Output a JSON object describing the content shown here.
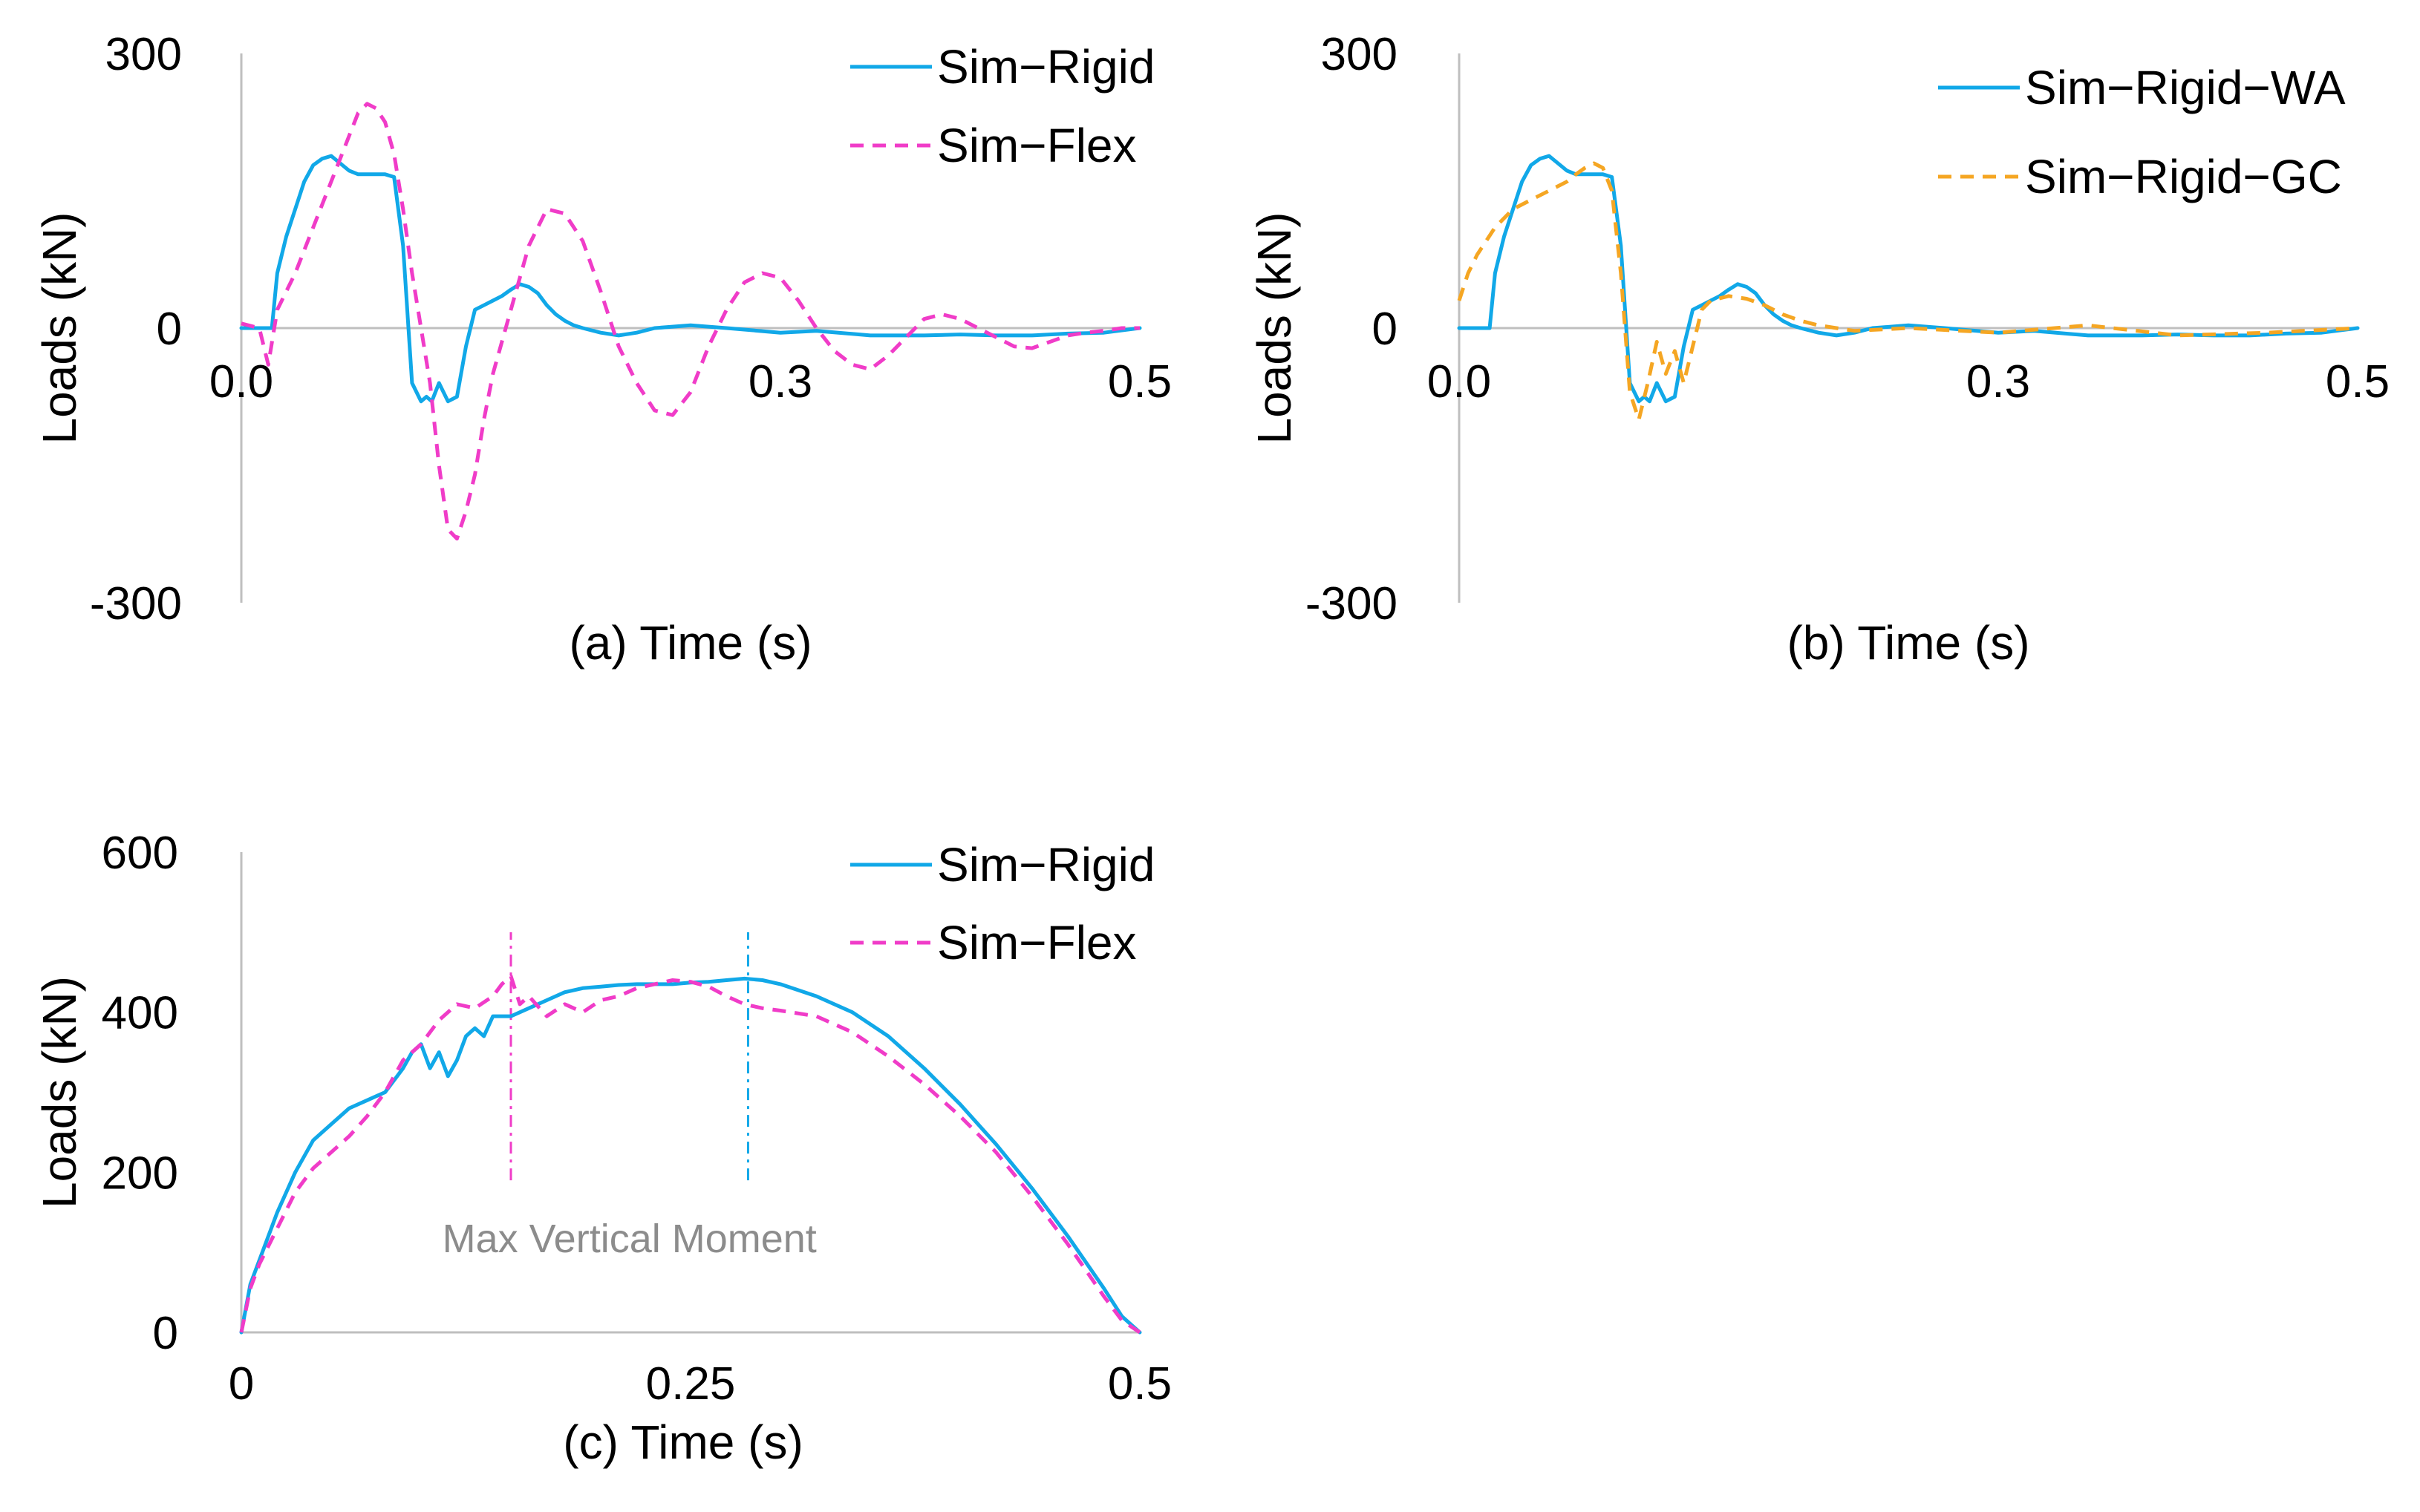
{
  "colors": {
    "blue": "#11A8E8",
    "magenta": "#F03CC8",
    "orange": "#F5A623",
    "axis": "#BFBFBF",
    "text": "#000000",
    "annotation": "#8C8C8C"
  },
  "chart_data": [
    {
      "id": "a",
      "type": "line",
      "xlabel": "(a) Time (s)",
      "ylabel": "Loads (kN)",
      "xlim": [
        0,
        0.5
      ],
      "ylim": [
        -300,
        300
      ],
      "xticks": [
        0.0,
        0.3,
        0.5
      ],
      "xtick_labels": [
        "0.0",
        "0.3",
        "0.5"
      ],
      "yticks": [
        -300,
        0,
        300
      ],
      "ytick_labels": [
        "-300",
        "0",
        "300"
      ],
      "legend_position": "top-right",
      "series": [
        {
          "name": "Sim−Rigid",
          "style": "solid",
          "color_key": "blue",
          "x": [
            0,
            0.01,
            0.015,
            0.017,
            0.02,
            0.025,
            0.03,
            0.035,
            0.04,
            0.045,
            0.05,
            0.055,
            0.06,
            0.065,
            0.07,
            0.075,
            0.08,
            0.085,
            0.09,
            0.095,
            0.1,
            0.103,
            0.106,
            0.11,
            0.115,
            0.12,
            0.125,
            0.13,
            0.135,
            0.14,
            0.145,
            0.15,
            0.155,
            0.16,
            0.165,
            0.17,
            0.175,
            0.18,
            0.185,
            0.19,
            0.2,
            0.21,
            0.22,
            0.23,
            0.25,
            0.27,
            0.3,
            0.32,
            0.35,
            0.38,
            0.4,
            0.42,
            0.44,
            0.46,
            0.48,
            0.5
          ],
          "y": [
            0,
            0,
            0,
            0,
            60,
            100,
            130,
            160,
            178,
            185,
            188,
            180,
            172,
            168,
            168,
            168,
            168,
            165,
            90,
            -60,
            -80,
            -75,
            -80,
            -60,
            -80,
            -75,
            -20,
            20,
            25,
            30,
            35,
            42,
            48,
            45,
            38,
            25,
            15,
            8,
            3,
            0,
            -5,
            -8,
            -5,
            0,
            3,
            0,
            -5,
            -3,
            -8,
            -8,
            -7,
            -8,
            -8,
            -6,
            -5,
            0
          ]
        },
        {
          "name": "Sim−Flex",
          "style": "dashed",
          "color_key": "magenta",
          "x": [
            0,
            0.01,
            0.015,
            0.02,
            0.03,
            0.04,
            0.05,
            0.06,
            0.065,
            0.07,
            0.075,
            0.08,
            0.085,
            0.09,
            0.095,
            0.1,
            0.105,
            0.11,
            0.115,
            0.12,
            0.125,
            0.13,
            0.135,
            0.14,
            0.15,
            0.16,
            0.17,
            0.18,
            0.19,
            0.2,
            0.21,
            0.22,
            0.23,
            0.24,
            0.25,
            0.26,
            0.27,
            0.28,
            0.29,
            0.3,
            0.31,
            0.32,
            0.33,
            0.34,
            0.35,
            0.36,
            0.37,
            0.38,
            0.39,
            0.4,
            0.41,
            0.42,
            0.43,
            0.44,
            0.45,
            0.46,
            0.47,
            0.48,
            0.49,
            0.5
          ],
          "y": [
            5,
            0,
            -40,
            20,
            60,
            110,
            160,
            210,
            235,
            245,
            240,
            225,
            190,
            130,
            60,
            0,
            -60,
            -150,
            -220,
            -230,
            -200,
            -160,
            -100,
            -50,
            20,
            90,
            130,
            125,
            95,
            40,
            -20,
            -60,
            -90,
            -95,
            -70,
            -20,
            20,
            50,
            60,
            55,
            30,
            0,
            -25,
            -40,
            -45,
            -30,
            -10,
            10,
            15,
            10,
            0,
            -10,
            -20,
            -22,
            -15,
            -8,
            -5,
            -3,
            0,
            0
          ]
        }
      ]
    },
    {
      "id": "b",
      "type": "line",
      "xlabel": "(b) Time (s)",
      "ylabel": "Loads (kN)",
      "xlim": [
        0,
        0.5
      ],
      "ylim": [
        -300,
        300
      ],
      "xticks": [
        0.0,
        0.3,
        0.5
      ],
      "xtick_labels": [
        "0.0",
        "0.3",
        "0.5"
      ],
      "yticks": [
        -300,
        0,
        300
      ],
      "ytick_labels": [
        "-300",
        "0",
        "300"
      ],
      "legend_position": "top-right",
      "series": [
        {
          "name": "Sim−Rigid−WA",
          "style": "solid",
          "color_key": "blue",
          "x": [
            0,
            0.01,
            0.015,
            0.017,
            0.02,
            0.025,
            0.03,
            0.035,
            0.04,
            0.045,
            0.05,
            0.055,
            0.06,
            0.065,
            0.07,
            0.075,
            0.08,
            0.085,
            0.09,
            0.095,
            0.1,
            0.103,
            0.106,
            0.11,
            0.115,
            0.12,
            0.125,
            0.13,
            0.135,
            0.14,
            0.145,
            0.15,
            0.155,
            0.16,
            0.165,
            0.17,
            0.175,
            0.18,
            0.185,
            0.19,
            0.2,
            0.21,
            0.22,
            0.23,
            0.25,
            0.27,
            0.3,
            0.32,
            0.35,
            0.38,
            0.4,
            0.42,
            0.44,
            0.46,
            0.48,
            0.5
          ],
          "y": [
            0,
            0,
            0,
            0,
            60,
            100,
            130,
            160,
            178,
            185,
            188,
            180,
            172,
            168,
            168,
            168,
            168,
            165,
            90,
            -60,
            -80,
            -75,
            -80,
            -60,
            -80,
            -75,
            -20,
            20,
            25,
            30,
            35,
            42,
            48,
            45,
            38,
            25,
            15,
            8,
            3,
            0,
            -5,
            -8,
            -5,
            0,
            3,
            0,
            -5,
            -3,
            -8,
            -8,
            -7,
            -8,
            -8,
            -6,
            -5,
            0
          ]
        },
        {
          "name": "Sim−Rigid−GC",
          "style": "dashed",
          "color_key": "orange",
          "x": [
            0,
            0.005,
            0.01,
            0.02,
            0.03,
            0.04,
            0.05,
            0.06,
            0.065,
            0.07,
            0.075,
            0.08,
            0.085,
            0.09,
            0.095,
            0.1,
            0.105,
            0.11,
            0.115,
            0.12,
            0.125,
            0.13,
            0.135,
            0.14,
            0.15,
            0.16,
            0.17,
            0.18,
            0.19,
            0.2,
            0.22,
            0.25,
            0.3,
            0.35,
            0.4,
            0.45,
            0.5
          ],
          "y": [
            30,
            60,
            80,
            110,
            130,
            140,
            150,
            160,
            168,
            175,
            180,
            175,
            150,
            60,
            -70,
            -100,
            -60,
            -15,
            -50,
            -25,
            -60,
            -20,
            20,
            30,
            35,
            32,
            25,
            15,
            8,
            3,
            -3,
            0,
            -5,
            3,
            -8,
            -5,
            0
          ]
        }
      ]
    },
    {
      "id": "c",
      "type": "line",
      "xlabel": "(c) Time (s)",
      "ylabel": "Loads (kN)",
      "xlim": [
        0,
        0.5
      ],
      "ylim": [
        0,
        600
      ],
      "xticks": [
        0,
        0.25,
        0.5
      ],
      "xtick_labels": [
        "0",
        "0.25",
        "0.5"
      ],
      "yticks": [
        0,
        200,
        400,
        600
      ],
      "ytick_labels": [
        "0",
        "200",
        "400",
        "600"
      ],
      "legend_position": "top-right",
      "annotation": "Max Vertical  Moment",
      "markers": [
        {
          "x": 0.15,
          "y_from": 190,
          "y_to": 500,
          "color_key": "magenta"
        },
        {
          "x": 0.282,
          "y_from": 190,
          "y_to": 500,
          "color_key": "blue"
        }
      ],
      "series": [
        {
          "name": "Sim−Rigid",
          "style": "solid",
          "color_key": "blue",
          "x": [
            0,
            0.005,
            0.01,
            0.02,
            0.03,
            0.04,
            0.05,
            0.06,
            0.07,
            0.08,
            0.09,
            0.095,
            0.1,
            0.105,
            0.11,
            0.115,
            0.12,
            0.125,
            0.13,
            0.135,
            0.14,
            0.15,
            0.16,
            0.17,
            0.18,
            0.19,
            0.2,
            0.21,
            0.22,
            0.23,
            0.24,
            0.25,
            0.26,
            0.27,
            0.28,
            0.29,
            0.3,
            0.32,
            0.34,
            0.36,
            0.38,
            0.4,
            0.42,
            0.44,
            0.46,
            0.48,
            0.49,
            0.5
          ],
          "y": [
            0,
            60,
            90,
            150,
            200,
            240,
            260,
            280,
            290,
            300,
            330,
            350,
            360,
            330,
            350,
            320,
            340,
            370,
            380,
            370,
            395,
            395,
            405,
            415,
            425,
            430,
            432,
            434,
            435,
            435,
            435,
            437,
            438,
            440,
            442,
            440,
            435,
            420,
            400,
            370,
            330,
            285,
            235,
            180,
            120,
            55,
            20,
            0
          ]
        },
        {
          "name": "Sim−Flex",
          "style": "dashed",
          "color_key": "magenta",
          "x": [
            0,
            0.005,
            0.01,
            0.02,
            0.03,
            0.04,
            0.05,
            0.06,
            0.07,
            0.08,
            0.09,
            0.1,
            0.11,
            0.12,
            0.13,
            0.14,
            0.145,
            0.15,
            0.155,
            0.16,
            0.17,
            0.18,
            0.19,
            0.2,
            0.21,
            0.22,
            0.23,
            0.24,
            0.25,
            0.26,
            0.27,
            0.28,
            0.29,
            0.3,
            0.32,
            0.34,
            0.36,
            0.38,
            0.4,
            0.42,
            0.44,
            0.46,
            0.48,
            0.49,
            0.5
          ],
          "y": [
            0,
            55,
            85,
            130,
            175,
            205,
            225,
            245,
            270,
            300,
            340,
            360,
            390,
            410,
            405,
            420,
            435,
            445,
            410,
            420,
            395,
            410,
            400,
            415,
            420,
            430,
            435,
            440,
            438,
            432,
            420,
            410,
            405,
            402,
            395,
            375,
            345,
            310,
            270,
            225,
            170,
            110,
            45,
            15,
            0
          ]
        }
      ]
    }
  ]
}
